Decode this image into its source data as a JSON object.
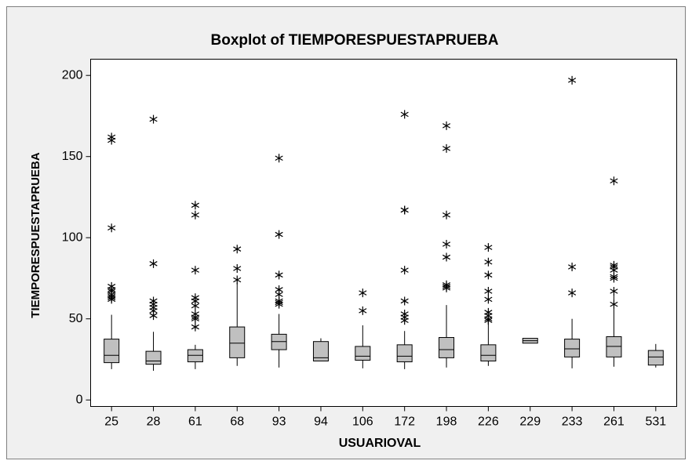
{
  "chart_data": {
    "type": "boxplot",
    "title": "Boxplot of TIEMPORESPUESTAPRUEBA",
    "x_label": "USUARIOVAL",
    "y_label": "TIEMPORESPUESTAPRUEBA",
    "categories": [
      "25",
      "28",
      "61",
      "68",
      "93",
      "94",
      "106",
      "172",
      "198",
      "226",
      "229",
      "233",
      "261",
      "531"
    ],
    "boxes": [
      {
        "whislo": 19,
        "q1": 23,
        "med": 27.5,
        "q3": 37.5,
        "whishi": 52.5,
        "fliers": [
          162,
          160,
          106,
          70,
          68,
          67,
          65,
          64,
          63,
          62
        ]
      },
      {
        "whislo": 18,
        "q1": 22,
        "med": 24,
        "q3": 30,
        "whishi": 42,
        "fliers": [
          173,
          84,
          61,
          59,
          57,
          55,
          52
        ]
      },
      {
        "whislo": 19,
        "q1": 23.5,
        "med": 27.5,
        "q3": 31,
        "whishi": 34,
        "fliers": [
          120,
          114,
          80,
          63,
          61,
          58,
          53,
          51,
          50,
          45
        ]
      },
      {
        "whislo": 21,
        "q1": 26,
        "med": 35,
        "q3": 45,
        "whishi": 72,
        "fliers": [
          93,
          81,
          74
        ]
      },
      {
        "whislo": 20,
        "q1": 31,
        "med": 36,
        "q3": 40.5,
        "whishi": 53,
        "fliers": [
          149,
          102,
          77,
          68,
          65,
          61,
          60,
          59
        ]
      },
      {
        "whislo": 24,
        "q1": 24,
        "med": 26,
        "q3": 36,
        "whishi": 38,
        "fliers": []
      },
      {
        "whislo": 19.5,
        "q1": 24.5,
        "med": 27,
        "q3": 33,
        "whishi": 46,
        "fliers": [
          66,
          55
        ]
      },
      {
        "whislo": 19,
        "q1": 23.5,
        "med": 27,
        "q3": 34,
        "whishi": 42.5,
        "fliers": [
          176,
          117,
          117,
          80,
          61,
          53,
          51,
          49
        ]
      },
      {
        "whislo": 20,
        "q1": 26,
        "med": 31,
        "q3": 38.5,
        "whishi": 58.5,
        "fliers": [
          169,
          155,
          114,
          96,
          88,
          71,
          70,
          69
        ]
      },
      {
        "whislo": 21,
        "q1": 24,
        "med": 27.5,
        "q3": 34,
        "whishi": 48,
        "fliers": [
          94,
          85,
          77,
          67,
          62,
          54,
          52,
          50,
          49
        ]
      },
      {
        "whislo": 35,
        "q1": 35,
        "med": 36.5,
        "q3": 38,
        "whishi": 38,
        "fliers": []
      },
      {
        "whislo": 19.5,
        "q1": 26.5,
        "med": 31.5,
        "q3": 37.5,
        "whishi": 50,
        "fliers": [
          197,
          82,
          66
        ]
      },
      {
        "whislo": 20.5,
        "q1": 26.5,
        "med": 33,
        "q3": 39,
        "whishi": 65,
        "fliers": [
          135,
          83,
          82,
          80,
          76,
          75,
          67,
          59
        ]
      },
      {
        "whislo": 20,
        "q1": 21.5,
        "med": 26.5,
        "q3": 30.5,
        "whishi": 34.5,
        "fliers": []
      }
    ],
    "box_color": "#c0c0c0",
    "ylim": [
      -4,
      210
    ],
    "yticks": [
      0,
      50,
      100,
      150,
      200
    ],
    "grid": false
  }
}
